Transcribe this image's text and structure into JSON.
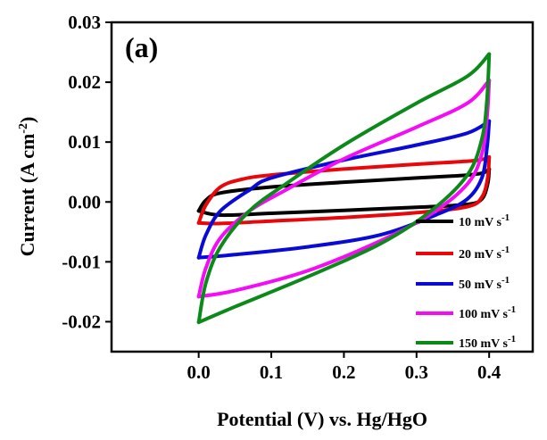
{
  "chart_data": {
    "type": "line",
    "panel_label": "(a)",
    "xlabel": "Potential (V) vs. Hg/HgO",
    "ylabel": "Current (A cm",
    "ylabel_sup": "-2",
    "ylabel_end": ")",
    "xlim": [
      -0.12,
      0.46
    ],
    "ylim": [
      -0.025,
      0.03
    ],
    "xticks": [
      {
        "value": 0.0,
        "label": "0.0"
      },
      {
        "value": 0.1,
        "label": "0.1"
      },
      {
        "value": 0.2,
        "label": "0.2"
      },
      {
        "value": 0.3,
        "label": "0.3"
      },
      {
        "value": 0.4,
        "label": "0.4"
      }
    ],
    "yticks": [
      {
        "value": -0.02,
        "label": "-0.02"
      },
      {
        "value": -0.01,
        "label": "-0.01"
      },
      {
        "value": 0.0,
        "label": "0.00"
      },
      {
        "value": 0.01,
        "label": "0.01"
      },
      {
        "value": 0.02,
        "label": "0.02"
      },
      {
        "value": 0.03,
        "label": "0.03"
      }
    ],
    "legend_position": "bottom-right",
    "series": [
      {
        "name": "10 mV s",
        "sup": "-1",
        "color": "#000000",
        "forward": [
          [
            0.0,
            -0.0015
          ],
          [
            0.01,
            0.0003
          ],
          [
            0.03,
            0.0015
          ],
          [
            0.1,
            0.0025
          ],
          [
            0.2,
            0.0033
          ],
          [
            0.3,
            0.004
          ],
          [
            0.36,
            0.0044
          ],
          [
            0.39,
            0.0048
          ],
          [
            0.4,
            0.0055
          ]
        ],
        "reverse": [
          [
            0.4,
            0.0055
          ],
          [
            0.398,
            0.003
          ],
          [
            0.39,
            0.0005
          ],
          [
            0.37,
            -0.0004
          ],
          [
            0.3,
            -0.0009
          ],
          [
            0.2,
            -0.0014
          ],
          [
            0.1,
            -0.0019
          ],
          [
            0.03,
            -0.0022
          ],
          [
            0.0,
            -0.0015
          ]
        ]
      },
      {
        "name": "20 mV s",
        "sup": "-1",
        "color": "#e8080b",
        "forward": [
          [
            0.0,
            -0.0035
          ],
          [
            0.01,
            -0.0005
          ],
          [
            0.03,
            0.0025
          ],
          [
            0.06,
            0.0038
          ],
          [
            0.1,
            0.0045
          ],
          [
            0.2,
            0.0055
          ],
          [
            0.3,
            0.0063
          ],
          [
            0.38,
            0.0069
          ],
          [
            0.4,
            0.0075
          ]
        ],
        "reverse": [
          [
            0.4,
            0.0075
          ],
          [
            0.398,
            0.004
          ],
          [
            0.39,
            0.0008
          ],
          [
            0.37,
            -0.0008
          ],
          [
            0.3,
            -0.0018
          ],
          [
            0.2,
            -0.0026
          ],
          [
            0.1,
            -0.0032
          ],
          [
            0.03,
            -0.0036
          ],
          [
            0.0,
            -0.0035
          ]
        ]
      },
      {
        "name": "50 mV s",
        "sup": "-1",
        "color": "#0a0ad6",
        "forward": [
          [
            0.0,
            -0.0093
          ],
          [
            0.01,
            -0.0055
          ],
          [
            0.03,
            -0.0015
          ],
          [
            0.07,
            0.002
          ],
          [
            0.1,
            0.004
          ],
          [
            0.2,
            0.007
          ],
          [
            0.3,
            0.0095
          ],
          [
            0.37,
            0.0115
          ],
          [
            0.4,
            0.0135
          ]
        ],
        "reverse": [
          [
            0.4,
            0.0135
          ],
          [
            0.397,
            0.009
          ],
          [
            0.39,
            0.004
          ],
          [
            0.37,
            0.0005
          ],
          [
            0.33,
            -0.002
          ],
          [
            0.25,
            -0.0055
          ],
          [
            0.15,
            -0.0075
          ],
          [
            0.05,
            -0.0088
          ],
          [
            0.0,
            -0.0093
          ]
        ]
      },
      {
        "name": "100 mV s",
        "sup": "-1",
        "color": "#f40cf4",
        "forward": [
          [
            0.0,
            -0.0158
          ],
          [
            0.01,
            -0.011
          ],
          [
            0.03,
            -0.006
          ],
          [
            0.07,
            -0.0015
          ],
          [
            0.12,
            0.002
          ],
          [
            0.2,
            0.0072
          ],
          [
            0.3,
            0.0125
          ],
          [
            0.37,
            0.0165
          ],
          [
            0.4,
            0.0203
          ]
        ],
        "reverse": [
          [
            0.4,
            0.0203
          ],
          [
            0.397,
            0.014
          ],
          [
            0.39,
            0.008
          ],
          [
            0.37,
            0.003
          ],
          [
            0.32,
            -0.002
          ],
          [
            0.25,
            -0.0065
          ],
          [
            0.15,
            -0.0115
          ],
          [
            0.05,
            -0.0148
          ],
          [
            0.0,
            -0.0158
          ]
        ]
      },
      {
        "name": "150 mV s",
        "sup": "-1",
        "color": "#0b8a1a",
        "forward": [
          [
            0.0,
            -0.0201
          ],
          [
            0.01,
            -0.0135
          ],
          [
            0.03,
            -0.0075
          ],
          [
            0.07,
            -0.0015
          ],
          [
            0.12,
            0.003
          ],
          [
            0.2,
            0.0095
          ],
          [
            0.3,
            0.0165
          ],
          [
            0.37,
            0.021
          ],
          [
            0.4,
            0.0247
          ]
        ],
        "reverse": [
          [
            0.4,
            0.0247
          ],
          [
            0.397,
            0.017
          ],
          [
            0.39,
            0.0105
          ],
          [
            0.37,
            0.0045
          ],
          [
            0.32,
            -0.0015
          ],
          [
            0.25,
            -0.007
          ],
          [
            0.15,
            -0.0125
          ],
          [
            0.05,
            -0.0175
          ],
          [
            0.0,
            -0.0201
          ]
        ]
      }
    ]
  }
}
